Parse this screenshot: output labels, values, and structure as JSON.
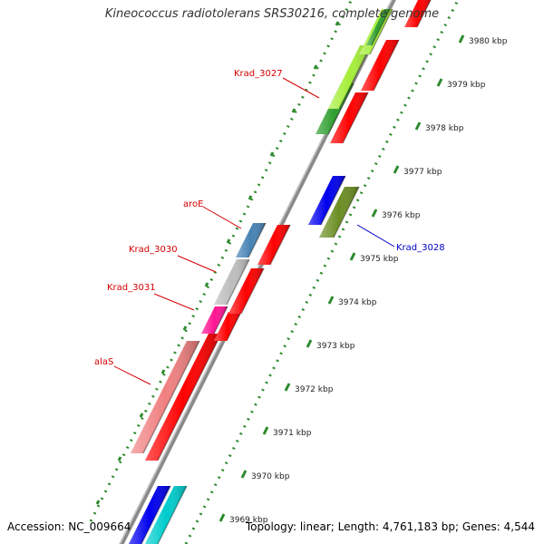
{
  "title": "Kineococcus radiotolerans SRS30216, complete genome",
  "accession": "Accession: NC_009664",
  "summary": "Topology: linear; Length: 4,761,183 bp; Genes: 4,544",
  "kbp_ticks": [
    "3980 kbp",
    "3979 kbp",
    "3978 kbp",
    "3977 kbp",
    "3976 kbp",
    "3975 kbp",
    "3974 kbp",
    "3973 kbp",
    "3972 kbp",
    "3971 kbp",
    "3970 kbp",
    "3969 kbp"
  ],
  "gene_labels": [
    {
      "name": "Krad_3027",
      "color": "#d40000"
    },
    {
      "name": "aroE",
      "color": "#d40000"
    },
    {
      "name": "Krad_3030",
      "color": "#d40000"
    },
    {
      "name": "Krad_3031",
      "color": "#d40000"
    },
    {
      "name": "alaS",
      "color": "#d40000"
    },
    {
      "name": "Krad_3028",
      "color": "#0000cc"
    }
  ],
  "colors": {
    "backbone": "#8a8a8a",
    "dots": "#2e8b2e",
    "cds_red": "#ff0000",
    "lime": "#a6ee3a",
    "green": "#2e9e2e",
    "blue": "#0000ee",
    "olive": "#6b8e23",
    "steelblue": "#4682b4",
    "gray": "#bdbdbd",
    "magenta": "#ff1493",
    "salmon": "#f08080",
    "cyan": "#00cccc"
  }
}
